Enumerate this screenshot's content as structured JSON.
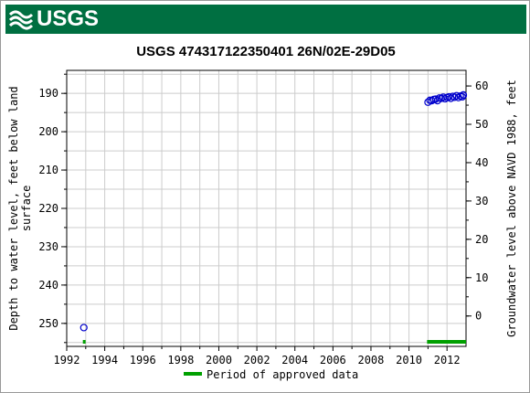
{
  "brand": {
    "logo_text": "USGS",
    "banner_color": "#006f41"
  },
  "chart_data": {
    "type": "scatter",
    "title": "USGS 474317122350401 26N/02E-29D05",
    "ylabel_left_line1": "Depth to water level, feet below land",
    "ylabel_left_line2": "surface",
    "ylabel_right": "Groundwater level above NAVD 1988, feet",
    "xlim": [
      1992,
      2013
    ],
    "ylim_left": [
      184,
      256
    ],
    "y_left_inverted": true,
    "ylim_right": [
      64.07,
      -7.93
    ],
    "x_ticks": [
      1992,
      1994,
      1996,
      1998,
      2000,
      2002,
      2004,
      2006,
      2008,
      2010,
      2012
    ],
    "y_left_ticks": [
      190,
      200,
      210,
      220,
      230,
      240,
      250
    ],
    "y_right_ticks": [
      60,
      50,
      40,
      30,
      20,
      10,
      0
    ],
    "grid": true,
    "marker_color": "#0000cc",
    "approved_color": "#00a000",
    "series": [
      {
        "points": [
          [
            1992.9,
            251.1
          ],
          [
            2011.0,
            192.3
          ],
          [
            2011.1,
            191.8
          ],
          [
            2011.2,
            191.9
          ],
          [
            2011.3,
            191.6
          ],
          [
            2011.4,
            191.5
          ],
          [
            2011.5,
            191.9
          ],
          [
            2011.6,
            191.2
          ],
          [
            2011.7,
            191.3
          ],
          [
            2011.8,
            191.0
          ],
          [
            2011.9,
            191.4
          ],
          [
            2012.0,
            191.1
          ],
          [
            2012.1,
            190.9
          ],
          [
            2012.2,
            191.3
          ],
          [
            2012.3,
            190.8
          ],
          [
            2012.4,
            191.0
          ],
          [
            2012.5,
            190.6
          ],
          [
            2012.6,
            191.1
          ],
          [
            2012.7,
            190.7
          ],
          [
            2012.8,
            190.9
          ],
          [
            2012.9,
            190.5
          ],
          [
            2013.0,
            190.4
          ]
        ]
      }
    ],
    "approved_periods": [
      [
        1992.85,
        1992.98
      ],
      [
        2010.95,
        2013.0
      ]
    ],
    "legend": {
      "label": "Period of approved data",
      "placement": "bottom"
    }
  }
}
